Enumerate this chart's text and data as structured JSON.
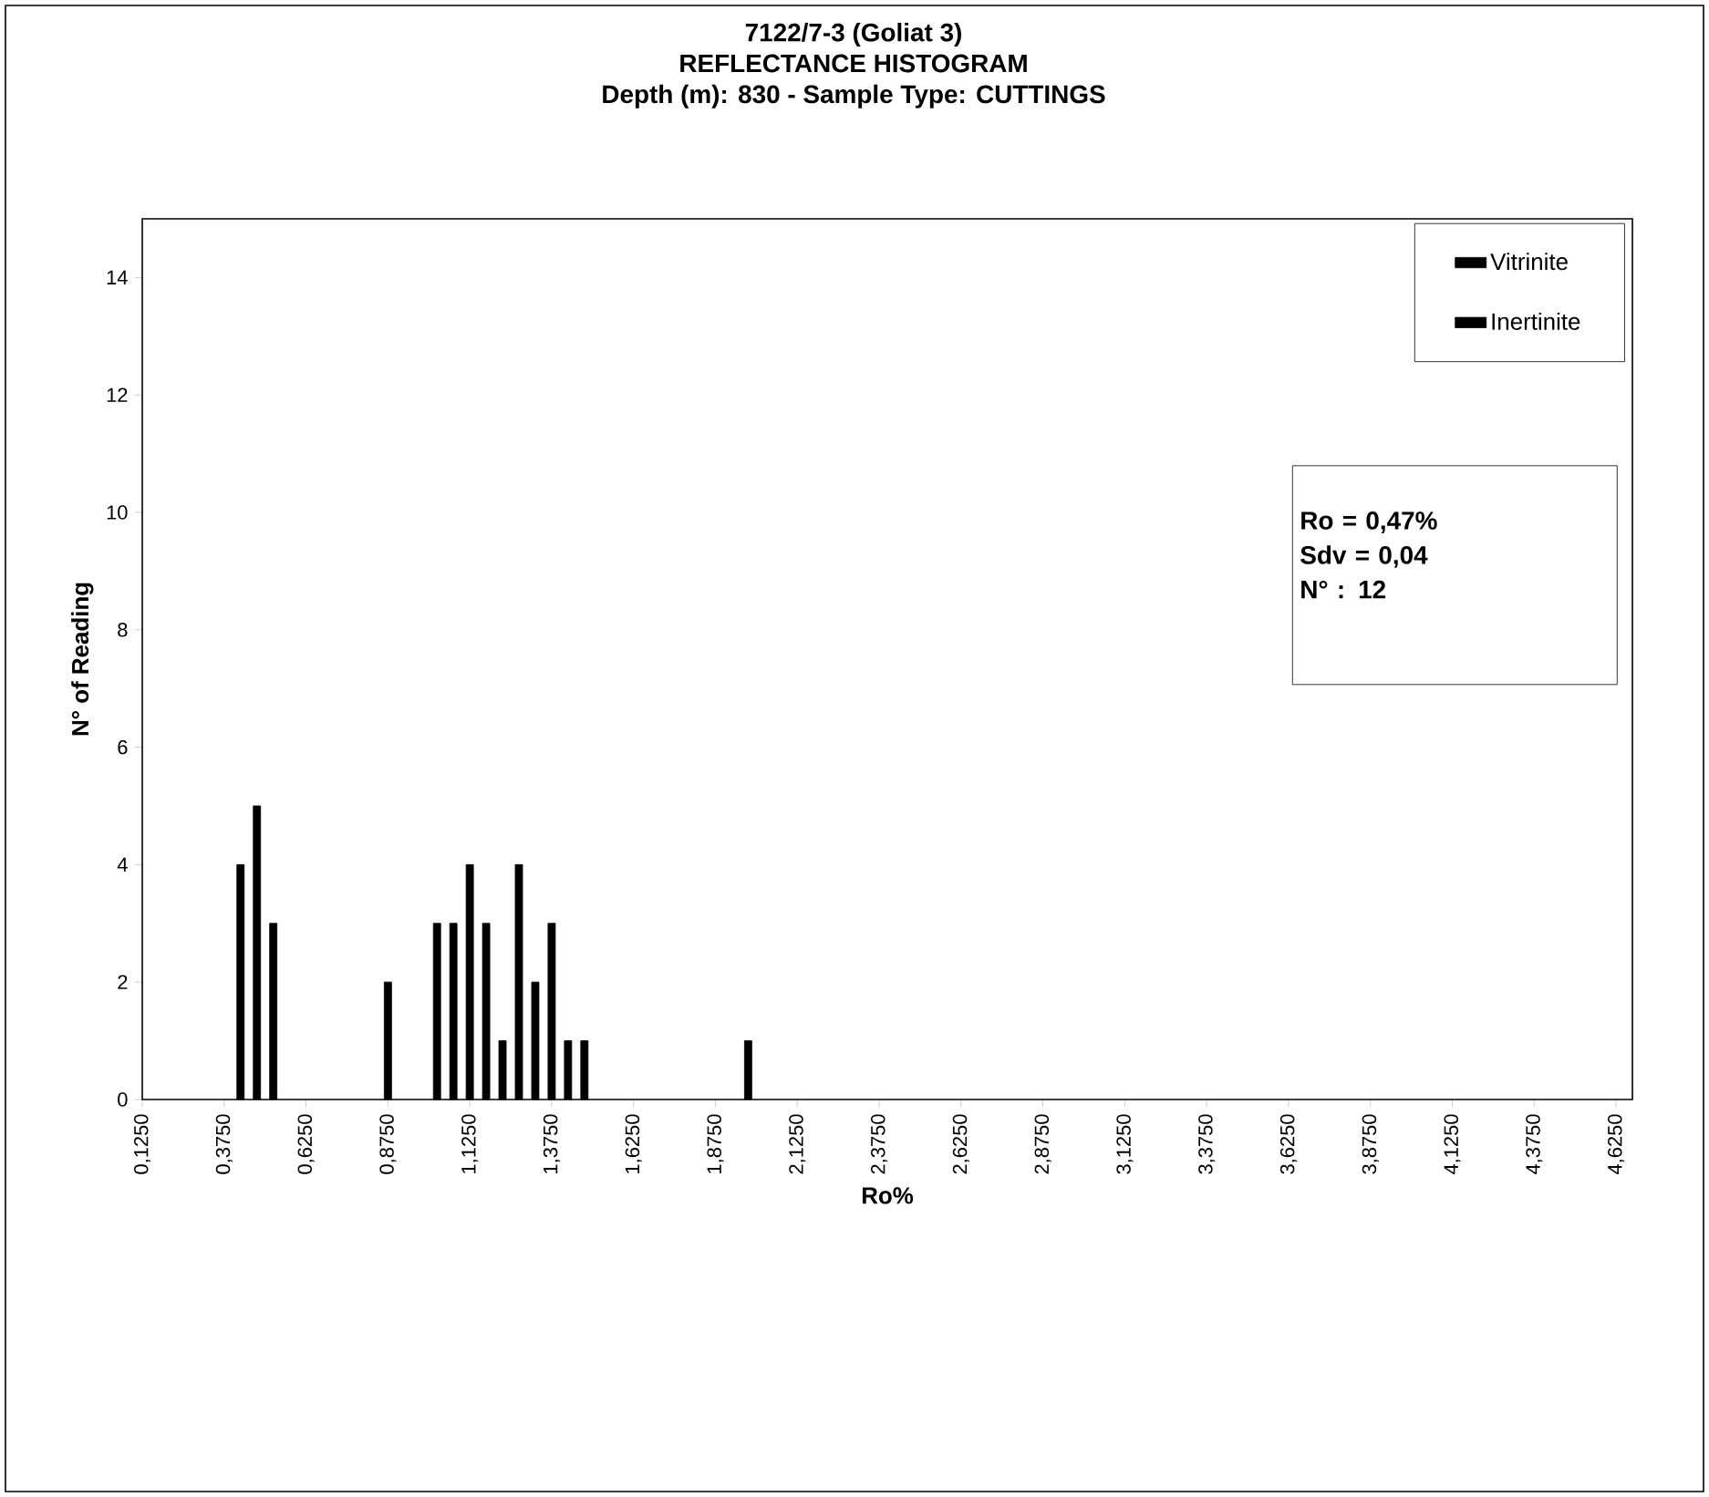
{
  "chart_data": {
    "type": "bar",
    "title": "7122/7-3 (Goliat 3)",
    "subtitle": "REFLECTANCE HISTOGRAM",
    "xlabel": "Ro%",
    "ylabel": "N° of Reading",
    "series": [
      {
        "name": "Vitrinite",
        "color": "#000000",
        "x": [
          0.425,
          0.475,
          0.525
        ],
        "values": [
          4,
          5,
          3
        ]
      },
      {
        "name": "Inertinite",
        "color": "#000000",
        "x": [
          0.875,
          1.025,
          1.075,
          1.125,
          1.175,
          1.225,
          1.275,
          1.325,
          1.375,
          1.425,
          1.475,
          1.975
        ],
        "values": [
          2,
          3,
          3,
          4,
          3,
          1,
          4,
          2,
          3,
          1,
          1,
          1
        ]
      }
    ],
    "xlim": [
      0.125,
      4.675
    ],
    "ylim": [
      0,
      15
    ],
    "xticks": [
      {
        "value": 0.125,
        "label": "0,1250"
      },
      {
        "value": 0.375,
        "label": "0,3750"
      },
      {
        "value": 0.625,
        "label": "0,6250"
      },
      {
        "value": 0.875,
        "label": "0,8750"
      },
      {
        "value": 1.125,
        "label": "1,1250"
      },
      {
        "value": 1.375,
        "label": "1,3750"
      },
      {
        "value": 1.625,
        "label": "1,6250"
      },
      {
        "value": 1.875,
        "label": "1,8750"
      },
      {
        "value": 2.125,
        "label": "2,1250"
      },
      {
        "value": 2.375,
        "label": "2,3750"
      },
      {
        "value": 2.625,
        "label": "2,6250"
      },
      {
        "value": 2.875,
        "label": "2,8750"
      },
      {
        "value": 3.125,
        "label": "3,1250"
      },
      {
        "value": 3.375,
        "label": "3,3750"
      },
      {
        "value": 3.625,
        "label": "3,6250"
      },
      {
        "value": 3.875,
        "label": "3,8750"
      },
      {
        "value": 4.125,
        "label": "4,1250"
      },
      {
        "value": 4.375,
        "label": "4,3750"
      },
      {
        "value": 4.625,
        "label": "4,6250"
      }
    ],
    "yticks": [
      0,
      2,
      4,
      6,
      8,
      10,
      12,
      14
    ],
    "legend": "top right",
    "annotations": [
      "Depth (m): 830 - Sample Type: CUTTINGS",
      "Ro = 0,47%",
      "Sdv = 0,04",
      "N° : 12"
    ]
  }
}
